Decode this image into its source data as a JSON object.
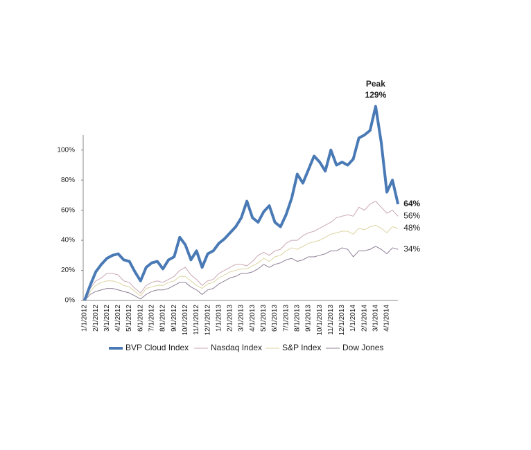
{
  "chart_data": {
    "type": "line",
    "categories": [
      "1/1/2012",
      null,
      "2/1/2012",
      null,
      "3/1/2012",
      null,
      "4/1/2012",
      null,
      "5/1/2012",
      null,
      "6/1/2012",
      null,
      "7/1/2012",
      null,
      "8/1/2012",
      null,
      "9/1/2012",
      null,
      "10/1/2012",
      null,
      "11/1/2012",
      null,
      "12/1/2012",
      null,
      "1/1/2013",
      null,
      "2/1/2013",
      null,
      "3/1/2013",
      null,
      "4/1/2013",
      null,
      "5/1/2013",
      null,
      "6/1/2013",
      null,
      "7/1/2013",
      null,
      "8/1/2013",
      null,
      "9/1/2013",
      null,
      "10/1/2013",
      null,
      "11/1/2013",
      null,
      "12/1/2013",
      null,
      "1/1/2014",
      null,
      "2/1/2014",
      null,
      "3/1/2014",
      null,
      "4/1/2014",
      null,
      null
    ],
    "series": [
      {
        "name": "BVP Cloud Index",
        "color": "#4a7ab5",
        "width": 4,
        "values": [
          0,
          10,
          19,
          24,
          28,
          30,
          31,
          27,
          26,
          19,
          13,
          22,
          25,
          26,
          21,
          27,
          29,
          42,
          37,
          27,
          33,
          22,
          31,
          33,
          38,
          41,
          45,
          49,
          55,
          66,
          55,
          52,
          59,
          63,
          52,
          49,
          57,
          68,
          84,
          78,
          87,
          96,
          92,
          86,
          100,
          90,
          92,
          90,
          94,
          108,
          110,
          113,
          129,
          105,
          72,
          80,
          64
        ],
        "value_labels": [
          null,
          null,
          null,
          null,
          null,
          null,
          null,
          null,
          null,
          null,
          null,
          null,
          null,
          null,
          null,
          null,
          null,
          null,
          null,
          null,
          null,
          null,
          null,
          null,
          null,
          null,
          null,
          null,
          null,
          null,
          null,
          null,
          null,
          null,
          null,
          null,
          null,
          null,
          null,
          null,
          null,
          null,
          null,
          null,
          null,
          null,
          null,
          null,
          null,
          null,
          null,
          null,
          "129%",
          null,
          null,
          null,
          "64%"
        ]
      },
      {
        "name": "Nasdaq Index",
        "color": "#c9a6b2",
        "width": 1,
        "values": [
          0,
          8,
          13,
          15,
          18,
          18,
          17,
          13,
          12,
          8,
          5,
          10,
          12,
          13,
          12,
          14,
          16,
          20,
          22,
          17,
          14,
          10,
          13,
          14,
          18,
          20,
          22,
          24,
          24,
          23,
          26,
          30,
          32,
          30,
          33,
          34,
          38,
          40,
          40,
          43,
          45,
          46,
          48,
          50,
          52,
          55,
          56,
          57,
          56,
          62,
          60,
          64,
          66,
          62,
          58,
          60,
          56
        ],
        "value_labels": [
          null,
          null,
          null,
          null,
          null,
          null,
          null,
          null,
          null,
          null,
          null,
          null,
          null,
          null,
          null,
          null,
          null,
          null,
          null,
          null,
          null,
          null,
          null,
          null,
          null,
          null,
          null,
          null,
          null,
          null,
          null,
          null,
          null,
          null,
          null,
          null,
          null,
          null,
          null,
          null,
          null,
          null,
          null,
          null,
          null,
          null,
          null,
          null,
          null,
          null,
          null,
          null,
          null,
          null,
          null,
          null,
          "56%"
        ]
      },
      {
        "name": "S&P Index",
        "color": "#dcd4a2",
        "width": 1,
        "values": [
          0,
          6,
          10,
          12,
          13,
          13,
          12,
          10,
          9,
          6,
          3,
          8,
          9,
          10,
          10,
          12,
          13,
          16,
          16,
          13,
          10,
          8,
          11,
          12,
          15,
          17,
          19,
          20,
          21,
          21,
          23,
          25,
          28,
          26,
          29,
          30,
          33,
          35,
          34,
          36,
          38,
          39,
          40,
          42,
          44,
          45,
          46,
          46,
          44,
          48,
          47,
          49,
          50,
          48,
          45,
          49,
          48
        ],
        "value_labels": [
          null,
          null,
          null,
          null,
          null,
          null,
          null,
          null,
          null,
          null,
          null,
          null,
          null,
          null,
          null,
          null,
          null,
          null,
          null,
          null,
          null,
          null,
          null,
          null,
          null,
          null,
          null,
          null,
          null,
          null,
          null,
          null,
          null,
          null,
          null,
          null,
          null,
          null,
          null,
          null,
          null,
          null,
          null,
          null,
          null,
          null,
          null,
          null,
          null,
          null,
          null,
          null,
          null,
          null,
          null,
          null,
          "48%"
        ]
      },
      {
        "name": "Dow Jones",
        "color": "#8f7f96",
        "width": 1,
        "values": [
          0,
          4,
          6,
          7,
          8,
          8,
          7,
          6,
          5,
          3,
          1,
          4,
          6,
          7,
          7,
          8,
          10,
          12,
          12,
          9,
          7,
          4,
          7,
          8,
          11,
          13,
          15,
          16,
          18,
          18,
          19,
          21,
          24,
          22,
          24,
          25,
          27,
          28,
          26,
          27,
          29,
          29,
          30,
          31,
          33,
          33,
          35,
          34,
          29,
          33,
          33,
          34,
          36,
          34,
          31,
          35,
          34
        ],
        "value_labels": [
          null,
          null,
          null,
          null,
          null,
          null,
          null,
          null,
          null,
          null,
          null,
          null,
          null,
          null,
          null,
          null,
          null,
          null,
          null,
          null,
          null,
          null,
          null,
          null,
          null,
          null,
          null,
          null,
          null,
          null,
          null,
          null,
          null,
          null,
          null,
          null,
          null,
          null,
          null,
          null,
          null,
          null,
          null,
          null,
          null,
          null,
          null,
          null,
          null,
          null,
          null,
          null,
          null,
          null,
          null,
          null,
          "34%"
        ]
      }
    ],
    "annotations": [
      {
        "text": "Peak",
        "index": 52
      }
    ],
    "ylim": [
      0,
      110
    ],
    "yticks": [
      {
        "value": 0,
        "label": "0%"
      },
      {
        "value": 20,
        "label": "20%"
      },
      {
        "value": 40,
        "label": "40%"
      },
      {
        "value": 60,
        "label": "60%"
      },
      {
        "value": 80,
        "label": "80%"
      },
      {
        "value": 100,
        "label": "100%"
      }
    ],
    "grid": false
  }
}
